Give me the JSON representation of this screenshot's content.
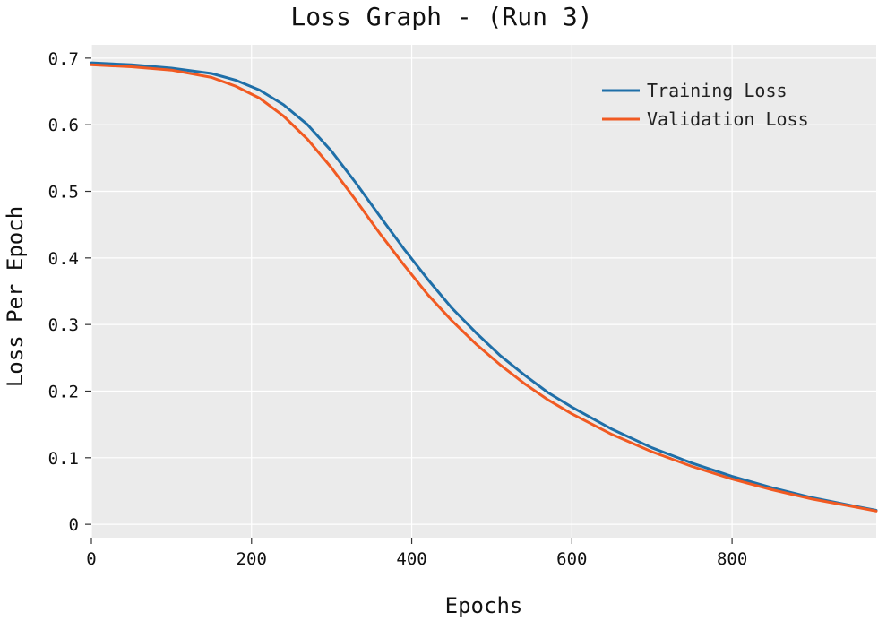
{
  "chart_data": {
    "type": "line",
    "title": "Loss Graph - (Run 3)",
    "xlabel": "Epochs",
    "ylabel": "Loss Per Epoch",
    "xlim": [
      0,
      980
    ],
    "ylim": [
      -0.02,
      0.72
    ],
    "x_ticks": [
      0,
      200,
      400,
      600,
      800
    ],
    "x_tick_labels": [
      "0",
      "200",
      "400",
      "600",
      "800"
    ],
    "y_ticks": [
      0,
      0.1,
      0.2,
      0.3,
      0.4,
      0.5,
      0.6,
      0.7
    ],
    "y_tick_labels": [
      "0",
      "0.1",
      "0.2",
      "0.3",
      "0.4",
      "0.5",
      "0.6",
      "0.7"
    ],
    "grid": true,
    "legend_position": "top-right",
    "background_color": "#ebebeb",
    "x": [
      0,
      50,
      100,
      150,
      180,
      210,
      240,
      270,
      300,
      330,
      360,
      390,
      420,
      450,
      480,
      510,
      540,
      570,
      600,
      650,
      700,
      750,
      800,
      850,
      900,
      950,
      980
    ],
    "series": [
      {
        "name": "Training Loss",
        "color": "#1f6fa8",
        "values": [
          0.693,
          0.69,
          0.685,
          0.677,
          0.667,
          0.652,
          0.63,
          0.6,
          0.56,
          0.513,
          0.463,
          0.414,
          0.368,
          0.325,
          0.288,
          0.254,
          0.225,
          0.198,
          0.176,
          0.143,
          0.115,
          0.092,
          0.072,
          0.055,
          0.04,
          0.028,
          0.021
        ]
      },
      {
        "name": "Validation Loss",
        "color": "#f15a22",
        "values": [
          0.69,
          0.687,
          0.682,
          0.671,
          0.658,
          0.64,
          0.613,
          0.578,
          0.535,
          0.487,
          0.437,
          0.39,
          0.345,
          0.306,
          0.271,
          0.24,
          0.212,
          0.187,
          0.166,
          0.135,
          0.109,
          0.087,
          0.068,
          0.052,
          0.038,
          0.027,
          0.02
        ]
      }
    ]
  }
}
